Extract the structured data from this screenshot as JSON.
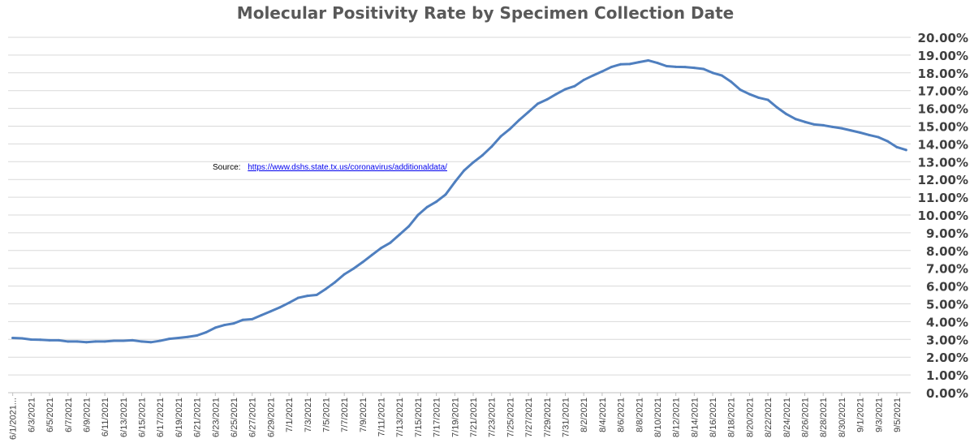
{
  "chart_data": {
    "type": "line",
    "title": "Molecular Positivity Rate by Specimen Collection Date",
    "xlabel": "",
    "ylabel": "",
    "ylim": [
      0,
      20
    ],
    "y_ticks": [
      "0.00%",
      "1.00%",
      "2.00%",
      "3.00%",
      "4.00%",
      "5.00%",
      "6.00%",
      "7.00%",
      "8.00%",
      "9.00%",
      "10.00%",
      "11.00%",
      "12.00%",
      "13.00%",
      "14.00%",
      "15.00%",
      "16.00%",
      "17.00%",
      "18.00%",
      "19.00%",
      "20.00%"
    ],
    "x_tick_labels": [
      "6/1/2021...",
      "6/3/2021",
      "6/5/2021",
      "6/7/2021",
      "6/9/2021",
      "6/11/2021",
      "6/13/2021",
      "6/15/2021",
      "6/17/2021",
      "6/19/2021",
      "6/21/2021",
      "6/23/2021",
      "6/25/2021",
      "6/27/2021",
      "6/29/2021",
      "7/1/2021",
      "7/3/2021",
      "7/5/2021",
      "7/7/2021",
      "7/9/2021",
      "7/11/2021",
      "7/13/2021",
      "7/15/2021",
      "7/17/2021",
      "7/19/2021",
      "7/21/2021",
      "7/23/2021",
      "7/25/2021",
      "7/27/2021",
      "7/29/2021",
      "7/31/2021",
      "8/2/2021",
      "8/4/2021",
      "8/6/2021",
      "8/8/2021",
      "8/10/2021",
      "8/12/2021",
      "8/14/2021",
      "8/16/2021",
      "8/18/2021",
      "8/20/2021",
      "8/22/2021",
      "8/24/2021",
      "8/26/2021",
      "8/28/2021",
      "8/30/2021",
      "9/1/2021",
      "9/3/2021",
      "9/5/2021"
    ],
    "grid": true,
    "legend": "none",
    "series": [
      {
        "name": "Molecular Positivity Rate",
        "color": "#4f7fbf",
        "values": [
          3.08,
          3.06,
          2.99,
          2.98,
          2.95,
          2.95,
          2.88,
          2.88,
          2.84,
          2.88,
          2.88,
          2.92,
          2.92,
          2.95,
          2.88,
          2.84,
          2.92,
          3.03,
          3.08,
          3.14,
          3.22,
          3.4,
          3.66,
          3.81,
          3.9,
          4.1,
          4.14,
          4.36,
          4.58,
          4.8,
          5.06,
          5.34,
          5.45,
          5.5,
          5.84,
          6.22,
          6.66,
          6.98,
          7.35,
          7.75,
          8.14,
          8.44,
          8.9,
          9.36,
          10.0,
          10.45,
          10.75,
          11.15,
          11.85,
          12.5,
          12.96,
          13.36,
          13.85,
          14.43,
          14.85,
          15.35,
          15.8,
          16.26,
          16.5,
          16.8,
          17.08,
          17.25,
          17.6,
          17.85,
          18.08,
          18.33,
          18.48,
          18.5,
          18.6,
          18.7,
          18.56,
          18.38,
          18.34,
          18.33,
          18.28,
          18.22,
          18.0,
          17.85,
          17.5,
          17.05,
          16.8,
          16.6,
          16.48,
          16.05,
          15.68,
          15.4,
          15.24,
          15.1,
          15.05,
          14.96,
          14.88,
          14.76,
          14.64,
          14.5,
          14.38,
          14.15,
          13.82,
          13.66
        ]
      }
    ],
    "source_label": "Source:",
    "source_url": "https://www.dshs.state.tx.us/coronavirus/additionaldata/"
  }
}
